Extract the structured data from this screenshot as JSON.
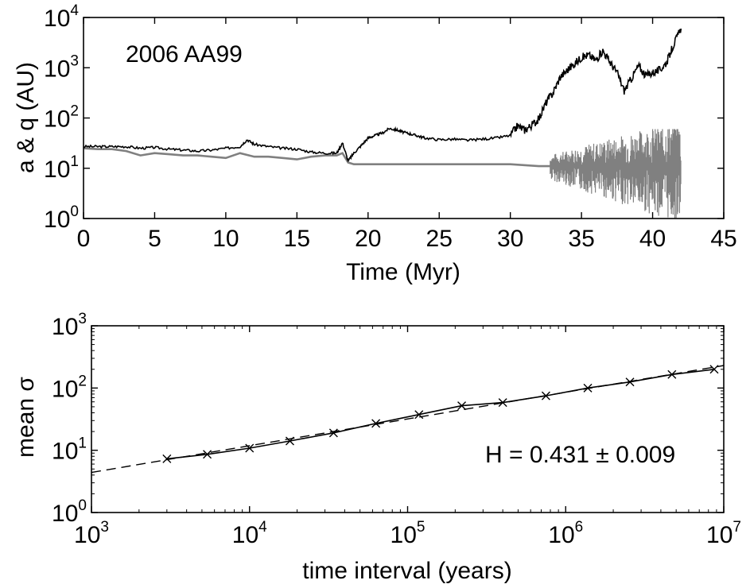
{
  "chart_data": [
    {
      "type": "line",
      "annotation": "2006 AA99",
      "xlabel": "Time (Myr)",
      "ylabel": "a & q (AU)",
      "xlim": [
        0,
        45
      ],
      "ylim": [
        1,
        10000
      ],
      "yscale": "log",
      "x_ticks": [
        "0",
        "5",
        "10",
        "15",
        "20",
        "25",
        "30",
        "35",
        "40",
        "45"
      ],
      "y_ticks": [
        {
          "base": "10",
          "exp": "0"
        },
        {
          "base": "10",
          "exp": "1"
        },
        {
          "base": "10",
          "exp": "2"
        },
        {
          "base": "10",
          "exp": "3"
        },
        {
          "base": "10",
          "exp": "4"
        }
      ],
      "grid": false,
      "series": [
        {
          "color": "#000000",
          "x": [
            0,
            1,
            2,
            3,
            4,
            5,
            6,
            7,
            8,
            9,
            10,
            11,
            11.5,
            12,
            13,
            14,
            15,
            16,
            17,
            17.8,
            18.2,
            18.6,
            19,
            19.5,
            20,
            20.5,
            21,
            21.5,
            22,
            22.5,
            23,
            23.5,
            24,
            25,
            26,
            27,
            28,
            29,
            30,
            30.5,
            31,
            31.5,
            32,
            32.5,
            33,
            33.5,
            34,
            34.5,
            35,
            35.5,
            36,
            36.5,
            37,
            37.5,
            38,
            38.5,
            39,
            39.5,
            40,
            40.5,
            41,
            41.5,
            42
          ],
          "y": [
            27,
            27,
            27,
            27,
            25,
            26,
            24,
            23,
            22,
            23,
            25,
            27,
            37,
            30,
            27,
            25,
            24,
            21,
            20,
            20,
            32,
            14,
            20,
            28,
            40,
            45,
            50,
            62,
            58,
            52,
            48,
            44,
            40,
            37,
            38,
            36,
            38,
            40,
            45,
            70,
            58,
            72,
            95,
            200,
            320,
            650,
            900,
            1200,
            1600,
            1800,
            1400,
            2200,
            1300,
            800,
            350,
            600,
            1100,
            700,
            800,
            900,
            1300,
            3000,
            6000
          ]
        },
        {
          "color": "#808080",
          "x": [
            0,
            1,
            2,
            3,
            4,
            5,
            6,
            7,
            8,
            9,
            10,
            11,
            12,
            13,
            14,
            15,
            16,
            17,
            17.8,
            18.2,
            18.6,
            19,
            20,
            22,
            24,
            26,
            28,
            30,
            32,
            33,
            34,
            35,
            36,
            37,
            38,
            39,
            40,
            41,
            41.5,
            42
          ],
          "y": [
            25,
            24,
            24,
            22,
            18,
            20,
            19,
            18,
            18,
            17,
            16,
            20,
            17,
            17,
            16,
            15,
            17,
            18,
            18,
            20,
            13,
            12,
            12,
            12,
            12,
            12,
            12,
            12,
            11,
            11,
            11,
            10,
            11,
            11,
            11,
            10,
            11,
            11,
            10,
            10
          ]
        }
      ]
    },
    {
      "type": "line",
      "annotation": "H = 0.431 ± 0.009",
      "xlabel": "time interval (years)",
      "ylabel": "mean σ",
      "xlim": [
        1000,
        10000000
      ],
      "ylim": [
        1,
        1000
      ],
      "xscale": "log",
      "yscale": "log",
      "x_ticks": [
        {
          "base": "10",
          "exp": "3"
        },
        {
          "base": "10",
          "exp": "4"
        },
        {
          "base": "10",
          "exp": "5"
        },
        {
          "base": "10",
          "exp": "6"
        },
        {
          "base": "10",
          "exp": "7"
        }
      ],
      "y_ticks": [
        {
          "base": "10",
          "exp": "0"
        },
        {
          "base": "10",
          "exp": "1"
        },
        {
          "base": "10",
          "exp": "2"
        },
        {
          "base": "10",
          "exp": "3"
        }
      ],
      "grid": false,
      "series": [
        {
          "style": "solid line with x markers",
          "color": "#000000",
          "x": [
            3000,
            5400,
            10000,
            18000,
            34000,
            63000,
            118000,
            220000,
            400000,
            750000,
            1380000,
            2550000,
            4700000,
            8700000
          ],
          "y": [
            7.3,
            8.6,
            10.8,
            14.1,
            19.0,
            27.0,
            37.5,
            52.0,
            58.5,
            75.0,
            100.0,
            125.0,
            165.0,
            200.0
          ]
        },
        {
          "style": "dashed fit line",
          "color": "#000000",
          "x": [
            1000,
            10000000
          ],
          "y": [
            4.4,
            230
          ]
        }
      ]
    }
  ]
}
